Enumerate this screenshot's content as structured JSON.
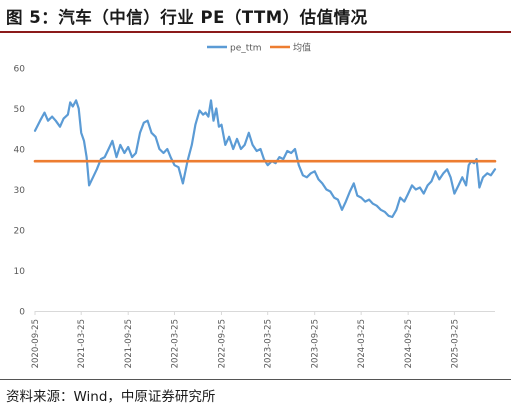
{
  "figure": {
    "title": "图 5：汽车（中信）行业 PE（TTM）估值情况",
    "source": "资料来源：Wind，中原证券研究所"
  },
  "colors": {
    "pe_series": "#5b9bd5",
    "mean_series": "#ed7d31",
    "axis": "#d9d9d9",
    "tick_text": "#595959",
    "title_rule": "#8b1a1a"
  },
  "chart_data": {
    "type": "line",
    "title": "",
    "xlabel": "",
    "ylabel": "",
    "ylim": [
      0,
      60
    ],
    "yticks": [
      0,
      10,
      20,
      30,
      40,
      50,
      60
    ],
    "x_tick_labels": [
      "2020-09-25",
      "2021-03-25",
      "2021-09-25",
      "2022-03-25",
      "2022-09-25",
      "2023-03-25",
      "2023-09-25",
      "2024-03-25",
      "2024-09-25",
      "2025-03-25"
    ],
    "x_range": [
      "2020-09-25",
      "2025-08-31"
    ],
    "grid": false,
    "legend": "top-center",
    "series": [
      {
        "name": "pe_ttm",
        "points": [
          [
            "2020-09-25",
            44.5
          ],
          [
            "2020-10-15",
            47
          ],
          [
            "2020-11-01",
            49
          ],
          [
            "2020-11-15",
            47
          ],
          [
            "2020-12-01",
            48
          ],
          [
            "2020-12-15",
            47
          ],
          [
            "2021-01-01",
            45.5
          ],
          [
            "2021-01-15",
            47.5
          ],
          [
            "2021-02-01",
            48.5
          ],
          [
            "2021-02-10",
            51.5
          ],
          [
            "2021-02-20",
            50.5
          ],
          [
            "2021-03-05",
            52
          ],
          [
            "2021-03-15",
            50
          ],
          [
            "2021-03-25",
            44
          ],
          [
            "2021-04-05",
            42
          ],
          [
            "2021-04-15",
            38
          ],
          [
            "2021-04-25",
            31
          ],
          [
            "2021-05-10",
            33
          ],
          [
            "2021-05-25",
            35
          ],
          [
            "2021-06-10",
            37.5
          ],
          [
            "2021-06-25",
            38
          ],
          [
            "2021-07-10",
            40
          ],
          [
            "2021-07-25",
            42
          ],
          [
            "2021-08-10",
            38
          ],
          [
            "2021-08-25",
            41
          ],
          [
            "2021-09-10",
            39
          ],
          [
            "2021-09-25",
            40.5
          ],
          [
            "2021-10-10",
            38
          ],
          [
            "2021-10-25",
            39
          ],
          [
            "2021-11-10",
            44
          ],
          [
            "2021-11-25",
            46.5
          ],
          [
            "2021-12-10",
            47
          ],
          [
            "2021-12-25",
            44
          ],
          [
            "2022-01-10",
            43
          ],
          [
            "2022-01-25",
            40
          ],
          [
            "2022-02-10",
            39
          ],
          [
            "2022-02-25",
            40
          ],
          [
            "2022-03-10",
            38
          ],
          [
            "2022-03-25",
            36
          ],
          [
            "2022-04-10",
            35.5
          ],
          [
            "2022-04-27",
            31.5
          ],
          [
            "2022-05-15",
            37
          ],
          [
            "2022-06-01",
            41
          ],
          [
            "2022-06-15",
            46
          ],
          [
            "2022-07-01",
            49.5
          ],
          [
            "2022-07-15",
            48.5
          ],
          [
            "2022-07-25",
            49
          ],
          [
            "2022-08-05",
            48
          ],
          [
            "2022-08-15",
            52
          ],
          [
            "2022-08-25",
            47
          ],
          [
            "2022-09-05",
            50
          ],
          [
            "2022-09-15",
            45.5
          ],
          [
            "2022-09-25",
            46
          ],
          [
            "2022-10-10",
            41
          ],
          [
            "2022-10-25",
            43
          ],
          [
            "2022-11-10",
            40
          ],
          [
            "2022-11-25",
            42.5
          ],
          [
            "2022-12-10",
            40
          ],
          [
            "2022-12-25",
            41
          ],
          [
            "2023-01-10",
            44
          ],
          [
            "2023-01-25",
            41
          ],
          [
            "2023-02-10",
            39.5
          ],
          [
            "2023-02-25",
            40
          ],
          [
            "2023-03-10",
            37.5
          ],
          [
            "2023-03-25",
            36
          ],
          [
            "2023-04-10",
            37
          ],
          [
            "2023-04-25",
            36.5
          ],
          [
            "2023-05-10",
            38
          ],
          [
            "2023-05-25",
            37.5
          ],
          [
            "2023-06-10",
            39.5
          ],
          [
            "2023-06-25",
            39
          ],
          [
            "2023-07-10",
            40
          ],
          [
            "2023-07-25",
            36
          ],
          [
            "2023-08-10",
            33.5
          ],
          [
            "2023-08-25",
            33
          ],
          [
            "2023-09-10",
            34
          ],
          [
            "2023-09-25",
            34.5
          ],
          [
            "2023-10-10",
            32.5
          ],
          [
            "2023-10-25",
            31.5
          ],
          [
            "2023-11-10",
            30
          ],
          [
            "2023-11-25",
            29.5
          ],
          [
            "2023-12-10",
            28
          ],
          [
            "2023-12-25",
            27.5
          ],
          [
            "2024-01-10",
            25
          ],
          [
            "2024-01-25",
            27
          ],
          [
            "2024-02-10",
            29.5
          ],
          [
            "2024-02-25",
            31.5
          ],
          [
            "2024-03-10",
            28.5
          ],
          [
            "2024-03-25",
            28
          ],
          [
            "2024-04-10",
            27
          ],
          [
            "2024-04-25",
            27.5
          ],
          [
            "2024-05-10",
            26.5
          ],
          [
            "2024-05-25",
            26
          ],
          [
            "2024-06-10",
            25
          ],
          [
            "2024-06-25",
            24.5
          ],
          [
            "2024-07-10",
            23.5
          ],
          [
            "2024-07-25",
            23.2
          ],
          [
            "2024-08-10",
            25
          ],
          [
            "2024-08-25",
            28
          ],
          [
            "2024-09-10",
            27
          ],
          [
            "2024-09-25",
            29
          ],
          [
            "2024-10-10",
            31
          ],
          [
            "2024-10-25",
            30
          ],
          [
            "2024-11-10",
            30.5
          ],
          [
            "2024-11-25",
            29
          ],
          [
            "2024-12-10",
            31
          ],
          [
            "2024-12-25",
            32
          ],
          [
            "2025-01-10",
            34.5
          ],
          [
            "2025-01-25",
            32.5
          ],
          [
            "2025-02-10",
            34
          ],
          [
            "2025-02-25",
            35
          ],
          [
            "2025-03-10",
            33
          ],
          [
            "2025-03-25",
            29
          ],
          [
            "2025-04-10",
            31
          ],
          [
            "2025-04-25",
            33
          ],
          [
            "2025-05-10",
            31
          ],
          [
            "2025-05-20",
            36
          ],
          [
            "2025-05-30",
            37
          ],
          [
            "2025-06-10",
            36.5
          ],
          [
            "2025-06-20",
            37.5
          ],
          [
            "2025-07-01",
            30.5
          ],
          [
            "2025-07-15",
            33
          ],
          [
            "2025-08-01",
            34
          ],
          [
            "2025-08-15",
            33.5
          ],
          [
            "2025-08-31",
            35
          ]
        ]
      },
      {
        "name": "均值",
        "points": [
          [
            "2020-09-25",
            37
          ],
          [
            "2025-08-31",
            37
          ]
        ]
      }
    ]
  }
}
